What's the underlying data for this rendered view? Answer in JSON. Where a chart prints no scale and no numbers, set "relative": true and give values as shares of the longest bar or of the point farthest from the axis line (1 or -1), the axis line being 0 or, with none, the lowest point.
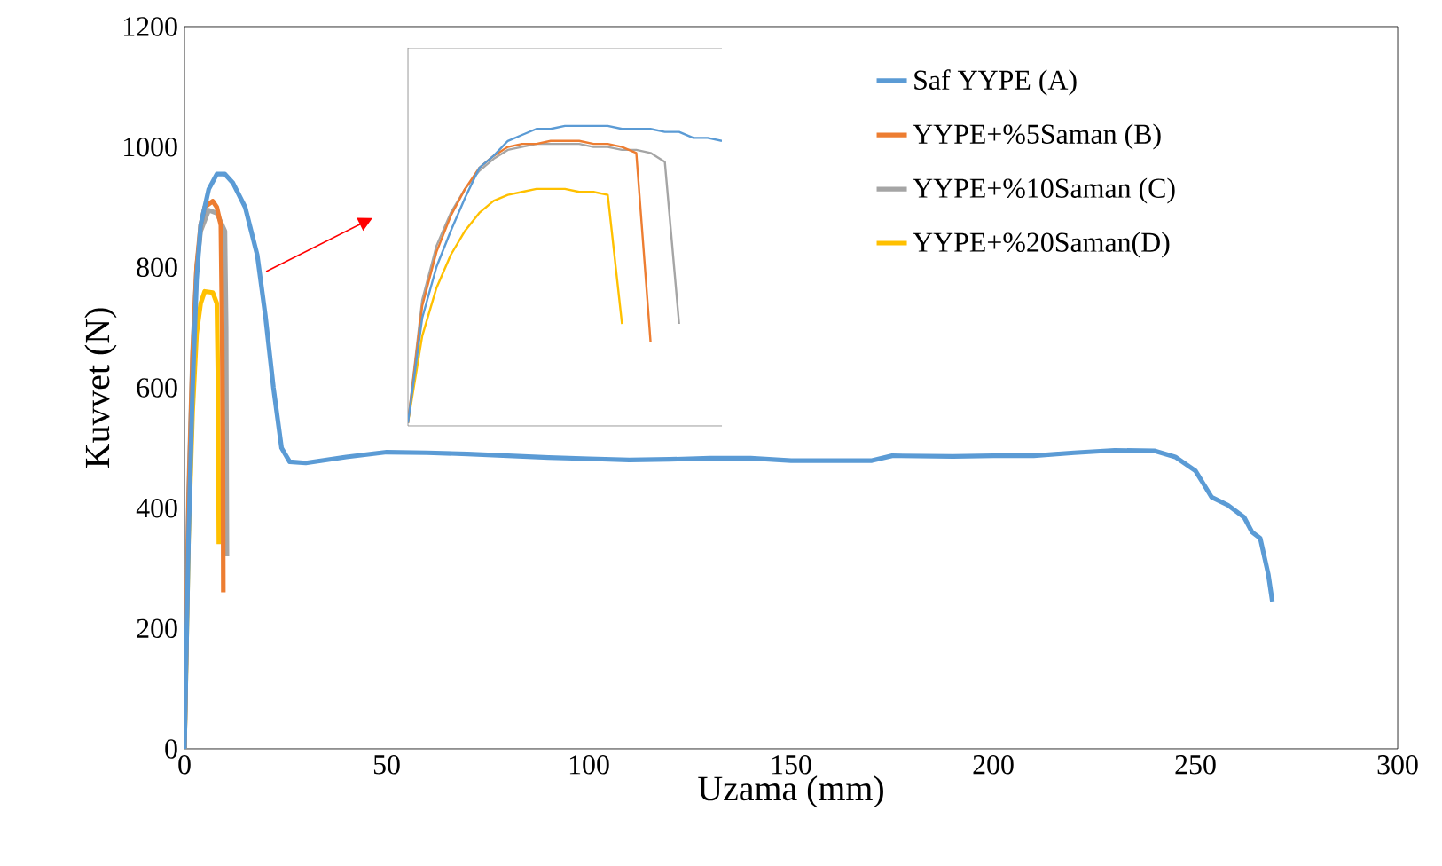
{
  "chart_data": [
    {
      "type": "line",
      "xlabel": "Uzama (mm)",
      "ylabel": "Kuvvet (N)",
      "xlim": [
        0,
        300
      ],
      "ylim": [
        0,
        1200
      ],
      "xticks": [
        0,
        50,
        100,
        150,
        200,
        250,
        300
      ],
      "yticks": [
        0,
        200,
        400,
        600,
        800,
        1000,
        1200
      ],
      "legend": "top right",
      "grid": false,
      "series": [
        {
          "name": "Saf YYPE (A)",
          "color": "#5b9bd5",
          "x": [
            0,
            1,
            2,
            3,
            4,
            6,
            8,
            10,
            12,
            15,
            18,
            20,
            22,
            24,
            26,
            30,
            40,
            50,
            60,
            70,
            80,
            90,
            100,
            110,
            120,
            130,
            140,
            150,
            160,
            170,
            175,
            190,
            200,
            210,
            220,
            230,
            240,
            245,
            250,
            252,
            254,
            258,
            262,
            264,
            266,
            267,
            268,
            269
          ],
          "values": [
            0,
            350,
            600,
            780,
            870,
            930,
            955,
            955,
            940,
            900,
            820,
            720,
            600,
            500,
            477,
            475,
            485,
            493,
            492,
            490,
            487,
            484,
            482,
            480,
            481,
            483,
            483,
            479,
            479,
            479,
            487,
            486,
            487,
            487,
            492,
            496,
            495,
            485,
            462,
            440,
            418,
            405,
            385,
            360,
            350,
            320,
            290,
            245
          ]
        },
        {
          "name": "YYPE+%5Saman (B)",
          "color": "#ed7d31",
          "x": [
            0,
            1,
            2,
            3,
            4,
            5,
            7,
            8,
            9,
            9.3,
            9.5,
            9.6
          ],
          "values": [
            0,
            400,
            650,
            800,
            870,
            900,
            910,
            900,
            870,
            700,
            500,
            260
          ]
        },
        {
          "name": "YYPE+%10Saman (C)",
          "color": "#a5a5a5",
          "x": [
            0,
            1,
            2,
            3,
            4,
            6,
            8,
            10,
            10.3,
            10.5
          ],
          "values": [
            0,
            420,
            660,
            800,
            860,
            895,
            890,
            860,
            700,
            320
          ]
        },
        {
          "name": "YYPE+%20Saman(D)",
          "color": "#ffc000",
          "x": [
            0,
            1,
            2,
            3,
            4,
            5,
            7,
            8,
            8.3,
            8.5
          ],
          "values": [
            0,
            350,
            560,
            690,
            740,
            760,
            758,
            740,
            600,
            340
          ]
        }
      ]
    },
    {
      "type": "line",
      "relative": true,
      "categories": [
        null,
        null,
        null,
        null,
        null,
        null,
        null,
        null,
        null,
        null,
        null,
        null,
        null,
        null,
        null,
        null,
        null,
        null,
        null,
        null,
        null,
        null,
        null
      ],
      "series": [
        {
          "color": "#5b9bd5",
          "values": [
            0.01,
            0.36,
            0.53,
            0.65,
            0.76,
            0.86,
            0.9,
            0.95,
            0.97,
            0.99,
            0.99,
            1.0,
            1.0,
            1.0,
            1.0,
            0.99,
            0.99,
            0.99,
            0.98,
            0.98,
            0.96,
            0.96,
            0.95
          ]
        },
        {
          "color": "#ed7d31",
          "values": [
            0.01,
            0.4,
            0.58,
            0.7,
            0.79,
            0.86,
            0.9,
            0.93,
            0.94,
            0.94,
            0.95,
            0.95,
            0.95,
            0.94,
            0.94,
            0.93,
            0.91,
            0.28,
            null,
            null,
            null,
            null,
            null
          ]
        },
        {
          "color": "#a5a5a5",
          "values": [
            0.01,
            0.42,
            0.6,
            0.71,
            0.79,
            0.85,
            0.89,
            0.92,
            0.93,
            0.94,
            0.94,
            0.94,
            0.94,
            0.93,
            0.93,
            0.92,
            0.92,
            0.91,
            0.88,
            0.34,
            null,
            null,
            null
          ]
        },
        {
          "color": "#ffc000",
          "values": [
            0.01,
            0.3,
            0.46,
            0.57,
            0.65,
            0.71,
            0.75,
            0.77,
            0.78,
            0.79,
            0.79,
            0.79,
            0.78,
            0.78,
            0.77,
            0.34,
            null,
            null,
            null,
            null,
            null,
            null,
            null
          ]
        }
      ]
    }
  ]
}
